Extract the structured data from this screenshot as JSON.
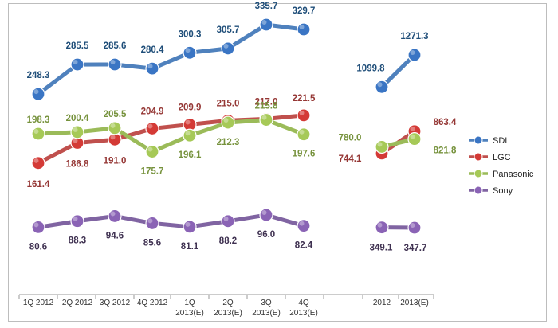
{
  "chart_data": {
    "type": "line",
    "title": "",
    "xlabel": "",
    "ylabel": "",
    "ylim": [
      0,
      1400
    ],
    "grid": false,
    "legend_position": "right",
    "groups": [
      {
        "categories": [
          [
            "1Q 2012"
          ],
          [
            "2Q 2012"
          ],
          [
            "3Q 2012"
          ],
          [
            "4Q 2012"
          ],
          [
            "1Q",
            "2013(E)"
          ],
          [
            "2Q",
            "2013(E)"
          ],
          [
            "3Q",
            "2013(E)"
          ],
          [
            "4Q",
            "2013(E)"
          ]
        ],
        "series": [
          {
            "name": "SDI",
            "values": [
              248.3,
              285.5,
              285.6,
              280.4,
              300.3,
              305.7,
              335.7,
              329.7
            ]
          },
          {
            "name": "LGC",
            "values": [
              161.4,
              186.8,
              191.0,
              204.9,
              209.9,
              215.0,
              217.0,
              221.5
            ]
          },
          {
            "name": "Panasonic",
            "values": [
              198.3,
              200.4,
              205.5,
              175.7,
              196.1,
              212.3,
              215.8,
              197.6
            ]
          },
          {
            "name": "Sony",
            "values": [
              80.6,
              88.3,
              94.6,
              85.6,
              81.1,
              88.2,
              96.0,
              82.4
            ]
          }
        ]
      },
      {
        "categories": [
          [
            "2012"
          ],
          [
            "2013(E)"
          ]
        ],
        "series": [
          {
            "name": "SDI",
            "values": [
              1099.8,
              1271.3
            ]
          },
          {
            "name": "LGC",
            "values": [
              744.1,
              863.4
            ]
          },
          {
            "name": "Panasonic",
            "values": [
              780.0,
              821.8
            ]
          },
          {
            "name": "Sony",
            "values": [
              349.1,
              347.7
            ]
          }
        ]
      }
    ],
    "legend": [
      "SDI",
      "LGC",
      "Panasonic",
      "Sony"
    ],
    "colors": {
      "SDI": {
        "line": "#4f81bd",
        "marker": "#3a75c4",
        "label": "#1f4e79"
      },
      "LGC": {
        "line": "#c0504d",
        "marker": "#d43a36",
        "label": "#953735"
      },
      "Panasonic": {
        "line": "#9bbb59",
        "marker": "#a6c957",
        "label": "#76923c"
      },
      "Sony": {
        "line": "#8064a2",
        "marker": "#8a63b5",
        "label": "#3f3151"
      }
    }
  }
}
